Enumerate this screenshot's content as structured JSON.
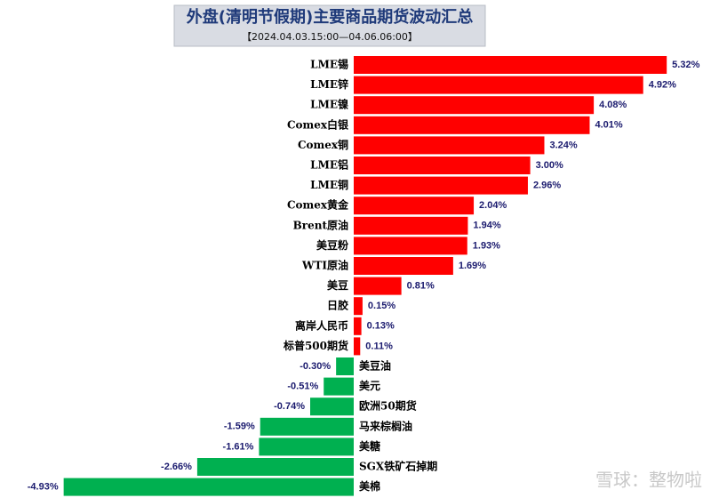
{
  "chart_data": {
    "type": "hbar",
    "title": "外盘(清明节假期)主要商品期货波动汇总",
    "subtitle": "【2024.04.03.15:00—04.06.06:00】",
    "categories": [
      "LME锡",
      "LME锌",
      "LME镍",
      "Comex白银",
      "Comex铜",
      "LME铝",
      "LME铜",
      "Comex黄金",
      "Brent原油",
      "美豆粉",
      "WTI原油",
      "美豆",
      "日胶",
      "离岸人民币",
      "标普500期货",
      "美豆油",
      "美元",
      "欧洲50期货",
      "马来棕榈油",
      "美糖",
      "SGX铁矿石掉期",
      "美棉"
    ],
    "values": [
      5.32,
      4.92,
      4.08,
      4.01,
      3.24,
      3.0,
      2.96,
      2.04,
      1.94,
      1.93,
      1.69,
      0.81,
      0.15,
      0.13,
      0.11,
      -0.3,
      -0.51,
      -0.74,
      -1.59,
      -1.61,
      -2.66,
      -4.93
    ],
    "value_labels": [
      "5.32%",
      "4.92%",
      "4.08%",
      "4.01%",
      "3.24%",
      "3.00%",
      "2.96%",
      "2.04%",
      "1.94%",
      "1.93%",
      "1.69%",
      "0.81%",
      "0.15%",
      "0.13%",
      "0.11%",
      "-0.30%",
      "-0.51%",
      "-0.74%",
      "-1.59%",
      "-1.61%",
      "-2.66%",
      "-4.93%"
    ],
    "positive_color": "#ff0000",
    "negative_color": "#00b050",
    "watermark": "雪球：整物啦"
  }
}
